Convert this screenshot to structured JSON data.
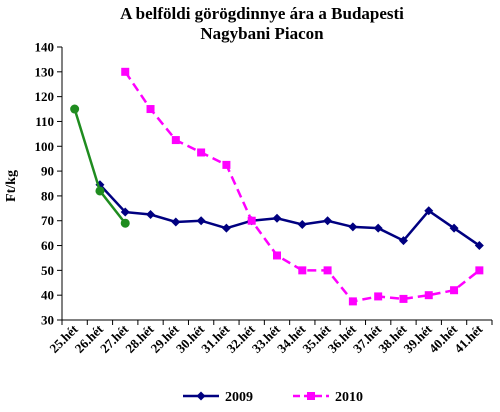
{
  "chart_data": {
    "type": "line",
    "title": "A belföldi görögdinnye ára a Budapesti Nagybani Piacon",
    "title_lines": [
      "A belföldi görögdinnye ára a Budapesti",
      "Nagybani Piacon"
    ],
    "ylabel": "Ft/kg",
    "xlabel": "",
    "ylim": [
      30,
      140
    ],
    "yticks": [
      30,
      40,
      50,
      60,
      70,
      80,
      90,
      100,
      110,
      120,
      130,
      140
    ],
    "grid": false,
    "legend_position": "bottom",
    "categories": [
      "25.hét",
      "26.hét",
      "27.hét",
      "28.hét",
      "29.hét",
      "30.hét",
      "31.hét",
      "32.hét",
      "33.hét",
      "34.hét",
      "35.hét",
      "36.hét",
      "37.hét",
      "38.hét",
      "39.hét",
      "40.hét",
      "41.hét"
    ],
    "series": [
      {
        "name": "2009",
        "color": "#000080",
        "marker": "diamond",
        "values": [
          null,
          84.5,
          73.5,
          72.5,
          69.5,
          70,
          67,
          70,
          71,
          68.5,
          70,
          67.5,
          67,
          62,
          74,
          67,
          60
        ]
      },
      {
        "name": "2010",
        "color": "#ff00ff",
        "marker": "square",
        "dashed": true,
        "values": [
          null,
          null,
          130,
          115,
          102.5,
          97.5,
          92.5,
          70,
          56,
          50,
          50,
          37.5,
          39.5,
          38.5,
          40,
          42,
          50
        ]
      },
      {
        "name": "",
        "color": "#1f8c1f",
        "marker": "circle",
        "values": [
          115,
          82,
          69,
          null,
          null,
          null,
          null,
          null,
          null,
          null,
          null,
          null,
          null,
          null,
          null,
          null,
          null
        ]
      }
    ]
  }
}
